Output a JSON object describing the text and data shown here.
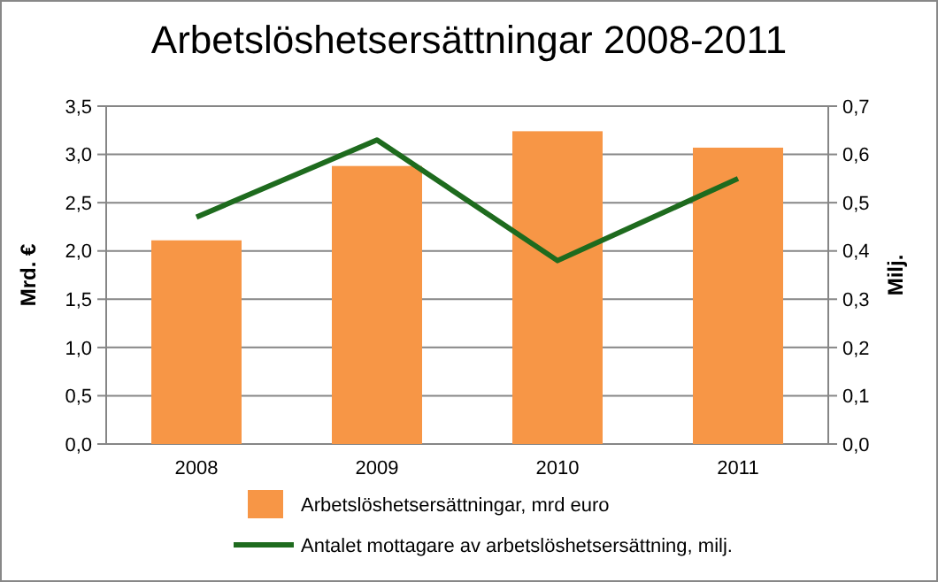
{
  "chart_data": {
    "type": "bar",
    "title": "Arbetslöshetsersättningar 2008-2011",
    "ylabel": "Mrd. €",
    "y2label": "Milj.",
    "categories": [
      "2008",
      "2009",
      "2010",
      "2011"
    ],
    "series": [
      {
        "name": "Arbetslöshetsersättningar, mrd  euro",
        "color": "#f79646",
        "values": [
          2.11,
          2.88,
          3.24,
          3.07
        ]
      },
      {
        "name": "Antalet mottagare av arbetslöshetsersättning, milj.",
        "type": "line",
        "axis": "y2",
        "color": "#1e6b1e",
        "values": [
          0.47,
          0.63,
          0.38,
          0.55
        ]
      }
    ],
    "ylim": [
      0,
      3.5
    ],
    "yticks": [
      {
        "value": 0,
        "label": "0,0"
      },
      {
        "value": 0.5,
        "label": "0,5"
      },
      {
        "value": 1,
        "label": "1,0"
      },
      {
        "value": 1.5,
        "label": "1,5"
      },
      {
        "value": 2,
        "label": "2,0"
      },
      {
        "value": 2.5,
        "label": "2,5"
      },
      {
        "value": 3,
        "label": "3,0"
      },
      {
        "value": 3.5,
        "label": "3,5"
      }
    ],
    "y2lim": [
      0,
      0.7
    ],
    "y2ticks": [
      {
        "value": 0,
        "label": "0,0"
      },
      {
        "value": 0.1,
        "label": "0,1"
      },
      {
        "value": 0.2,
        "label": "0,2"
      },
      {
        "value": 0.3,
        "label": "0,3"
      },
      {
        "value": 0.4,
        "label": "0,4"
      },
      {
        "value": 0.5,
        "label": "0,5"
      },
      {
        "value": 0.6,
        "label": "0,6"
      },
      {
        "value": 0.7,
        "label": "0,7"
      }
    ],
    "grid": "y",
    "legend": "bottom",
    "marker": "none"
  }
}
